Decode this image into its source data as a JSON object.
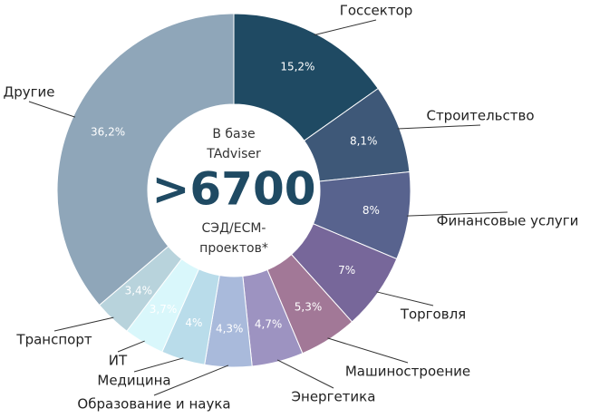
{
  "chart_data": {
    "type": "donut",
    "center_text": [
      "В базе",
      "TAdviser",
      ">6700",
      "СЭД/ECM-",
      "проектов*"
    ],
    "categories": [
      "Госсектор",
      "Строительство",
      "Финансовые услуги",
      "Торговля",
      "Машиностроение",
      "Энергетика",
      "Образование и наука",
      "Медицина",
      "ИТ",
      "Транспорт",
      "Другие"
    ],
    "values": [
      15.2,
      8.1,
      8,
      7,
      5.3,
      4.7,
      4.3,
      4,
      3.7,
      3.4,
      36.2
    ],
    "value_labels": [
      "15,2%",
      "8,1%",
      "8%",
      "7%",
      "5,3%",
      "4,7%",
      "4,3%",
      "4%",
      "3,7%",
      "3,4%",
      "36,2%"
    ],
    "colors": [
      "#1f4a63",
      "#3e5878",
      "#58638e",
      "#77679a",
      "#a27897",
      "#9d93c1",
      "#a9badb",
      "#b9dcea",
      "#d9f7fb",
      "#b8d3dc",
      "#8fa6b9"
    ]
  }
}
